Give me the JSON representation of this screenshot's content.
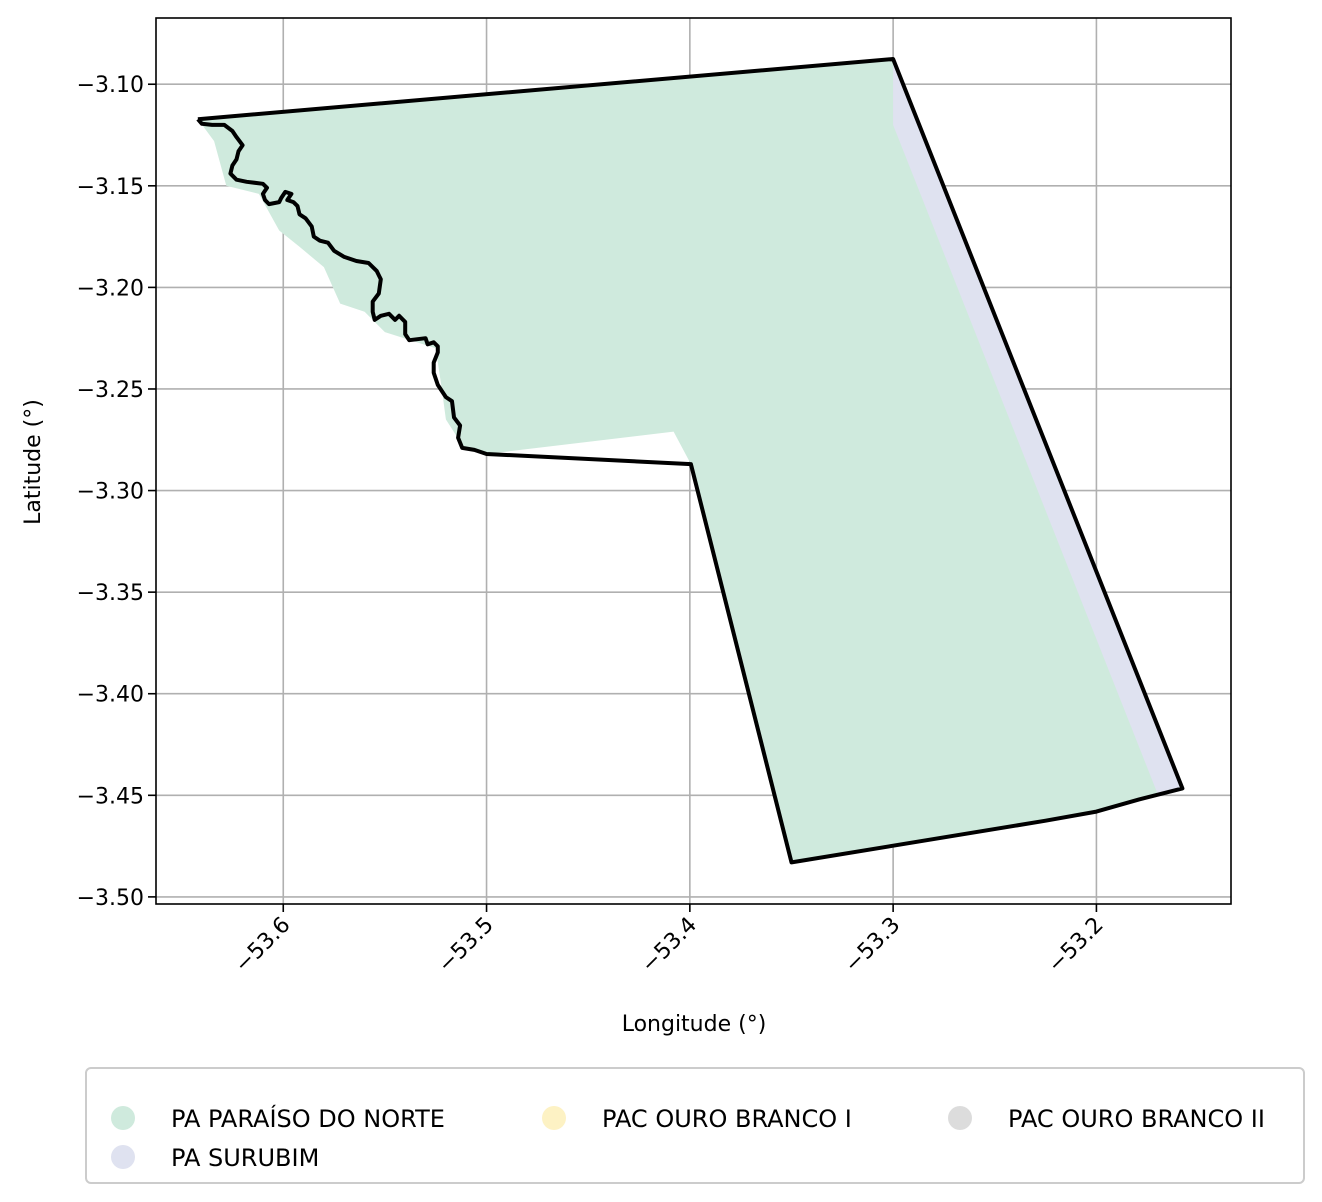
{
  "map": {
    "xlabel": "Longitude (°)",
    "ylabel": "Latitude (°)",
    "x_ticks": [
      {
        "value": -53.6,
        "label": "−53.6"
      },
      {
        "value": -53.5,
        "label": "−53.5"
      },
      {
        "value": -53.4,
        "label": "−53.4"
      },
      {
        "value": -53.3,
        "label": "−53.3"
      },
      {
        "value": -53.2,
        "label": "−53.2"
      }
    ],
    "y_ticks": [
      {
        "value": -3.1,
        "label": "−3.10"
      },
      {
        "value": -3.15,
        "label": "−3.15"
      },
      {
        "value": -3.2,
        "label": "−3.20"
      },
      {
        "value": -3.25,
        "label": "−3.25"
      },
      {
        "value": -3.3,
        "label": "−3.30"
      },
      {
        "value": -3.35,
        "label": "−3.35"
      },
      {
        "value": -3.4,
        "label": "−3.40"
      },
      {
        "value": -3.45,
        "label": "−3.45"
      },
      {
        "value": -3.5,
        "label": "−3.50"
      }
    ],
    "xlim": [
      -53.6626,
      -53.1338
    ],
    "ylim": [
      -3.5035,
      -3.0674
    ],
    "grid": true,
    "legend_placement": "below",
    "legend": [
      {
        "label": "PA PARAÍSO DO NORTE",
        "color": "#cfeadd"
      },
      {
        "label": "PA SURUBIM",
        "color": "#dfe2f0"
      },
      {
        "label": "PAC OURO BRANCO I",
        "color": "#fdf2c4"
      },
      {
        "label": "PAC OURO BRANCO II",
        "color": "#dcdcdc"
      }
    ],
    "colors": {
      "paraiso_fill": "#cfeadd",
      "surubim_fill": "#dfe2f0",
      "boundary": "#000000",
      "grid": "#b0b0b0"
    },
    "surubim_polygon": [
      [
        -53.3,
        -3.0876
      ],
      [
        -53.157,
        -3.447
      ],
      [
        -53.17,
        -3.449
      ],
      [
        -53.3,
        -3.12
      ]
    ],
    "paraiso_polygon": [
      [
        -53.642,
        -3.1172
      ],
      [
        -53.3,
        -3.0876
      ],
      [
        -53.159,
        -3.4465
      ],
      [
        -53.2,
        -3.458
      ],
      [
        -53.35,
        -3.483
      ],
      [
        -53.3995,
        -3.287
      ],
      [
        -53.408,
        -3.271
      ],
      [
        -53.5,
        -3.282
      ],
      [
        -53.511,
        -3.279
      ],
      [
        -53.52,
        -3.265
      ],
      [
        -53.522,
        -3.25
      ],
      [
        -53.525,
        -3.23
      ],
      [
        -53.55,
        -3.222
      ],
      [
        -53.56,
        -3.212
      ],
      [
        -53.572,
        -3.208
      ],
      [
        -53.58,
        -3.19
      ],
      [
        -53.592,
        -3.18
      ],
      [
        -53.602,
        -3.172
      ],
      [
        -53.612,
        -3.154
      ],
      [
        -53.628,
        -3.15
      ],
      [
        -53.634,
        -3.128
      ]
    ],
    "boundary_path": [
      [
        -53.642,
        -3.1172
      ],
      [
        -53.3,
        -3.0876
      ],
      [
        -53.1577,
        -3.4466
      ],
      [
        -53.179,
        -3.452
      ],
      [
        -53.2,
        -3.458
      ],
      [
        -53.225,
        -3.4625
      ],
      [
        -53.35,
        -3.483
      ],
      [
        -53.3995,
        -3.287
      ],
      [
        -53.5,
        -3.282
      ],
      [
        -53.506,
        -3.28
      ],
      [
        -53.512,
        -3.279
      ],
      [
        -53.514,
        -3.274
      ],
      [
        -53.513,
        -3.268
      ],
      [
        -53.516,
        -3.264
      ],
      [
        -53.517,
        -3.256
      ],
      [
        -53.52,
        -3.254
      ],
      [
        -53.524,
        -3.248
      ],
      [
        -53.526,
        -3.242
      ],
      [
        -53.526,
        -3.237
      ],
      [
        -53.524,
        -3.232
      ],
      [
        -53.524,
        -3.229
      ],
      [
        -53.526,
        -3.227
      ],
      [
        -53.529,
        -3.228
      ],
      [
        -53.53,
        -3.225
      ],
      [
        -53.538,
        -3.226
      ],
      [
        -53.54,
        -3.223
      ],
      [
        -53.54,
        -3.217
      ],
      [
        -53.543,
        -3.214
      ],
      [
        -53.545,
        -3.216
      ],
      [
        -53.548,
        -3.213
      ],
      [
        -53.552,
        -3.214
      ],
      [
        -53.555,
        -3.216
      ],
      [
        -53.556,
        -3.212
      ],
      [
        -53.556,
        -3.207
      ],
      [
        -53.553,
        -3.203
      ],
      [
        -53.552,
        -3.196
      ],
      [
        -53.554,
        -3.192
      ],
      [
        -53.558,
        -3.188
      ],
      [
        -53.564,
        -3.187
      ],
      [
        -53.57,
        -3.185
      ],
      [
        -53.575,
        -3.182
      ],
      [
        -53.578,
        -3.178
      ],
      [
        -53.582,
        -3.177
      ],
      [
        -53.585,
        -3.175
      ],
      [
        -53.586,
        -3.17
      ],
      [
        -53.589,
        -3.166
      ],
      [
        -53.592,
        -3.164
      ],
      [
        -53.593,
        -3.16
      ],
      [
        -53.595,
        -3.158
      ],
      [
        -53.598,
        -3.157
      ],
      [
        -53.596,
        -3.154
      ],
      [
        -53.599,
        -3.153
      ],
      [
        -53.601,
        -3.156
      ],
      [
        -53.602,
        -3.158
      ],
      [
        -53.607,
        -3.159
      ],
      [
        -53.609,
        -3.157
      ],
      [
        -53.61,
        -3.154
      ],
      [
        -53.608,
        -3.151
      ],
      [
        -53.61,
        -3.149
      ],
      [
        -53.618,
        -3.148
      ],
      [
        -53.623,
        -3.147
      ],
      [
        -53.626,
        -3.144
      ],
      [
        -53.625,
        -3.14
      ],
      [
        -53.623,
        -3.137
      ],
      [
        -53.622,
        -3.133
      ],
      [
        -53.62,
        -3.13
      ],
      [
        -53.623,
        -3.126
      ],
      [
        -53.625,
        -3.123
      ],
      [
        -53.629,
        -3.12
      ],
      [
        -53.635,
        -3.12
      ],
      [
        -53.64,
        -3.1195
      ],
      [
        -53.642,
        -3.1172
      ]
    ]
  }
}
